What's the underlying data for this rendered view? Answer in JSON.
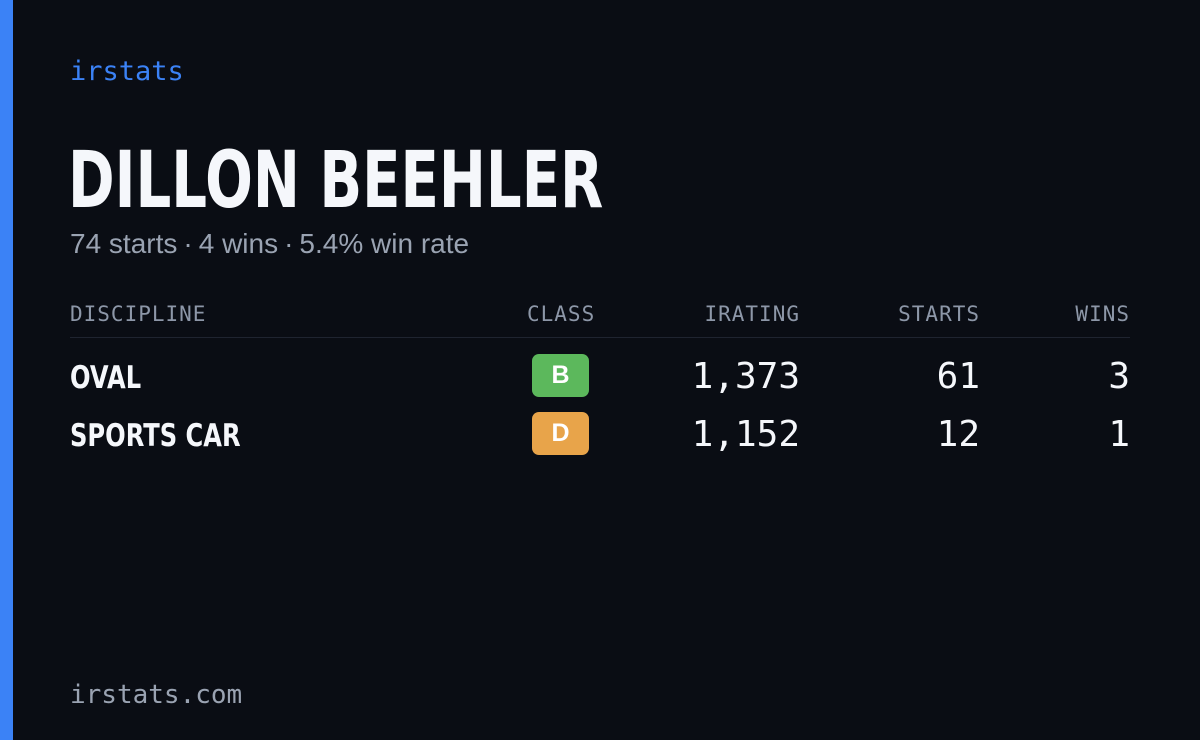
{
  "brand": "irstats",
  "player": {
    "name": "DILLON BEEHLER",
    "starts": "74 starts",
    "wins": "4 wins",
    "win_rate": "5.4% win rate",
    "separator": "·"
  },
  "table": {
    "headers": {
      "discipline": "DISCIPLINE",
      "class": "CLASS",
      "irating": "IRATING",
      "starts": "STARTS",
      "wins": "WINS"
    },
    "rows": [
      {
        "discipline": "OVAL",
        "class": "B",
        "class_color": "#5cb85c",
        "irating": "1,373",
        "starts": "61",
        "wins": "3"
      },
      {
        "discipline": "SPORTS CAR",
        "class": "D",
        "class_color": "#e8a44a",
        "irating": "1,152",
        "starts": "12",
        "wins": "1"
      }
    ]
  },
  "footer": "irstats.com",
  "colors": {
    "accent": "#3b82f6",
    "background": "#0a0d14"
  }
}
